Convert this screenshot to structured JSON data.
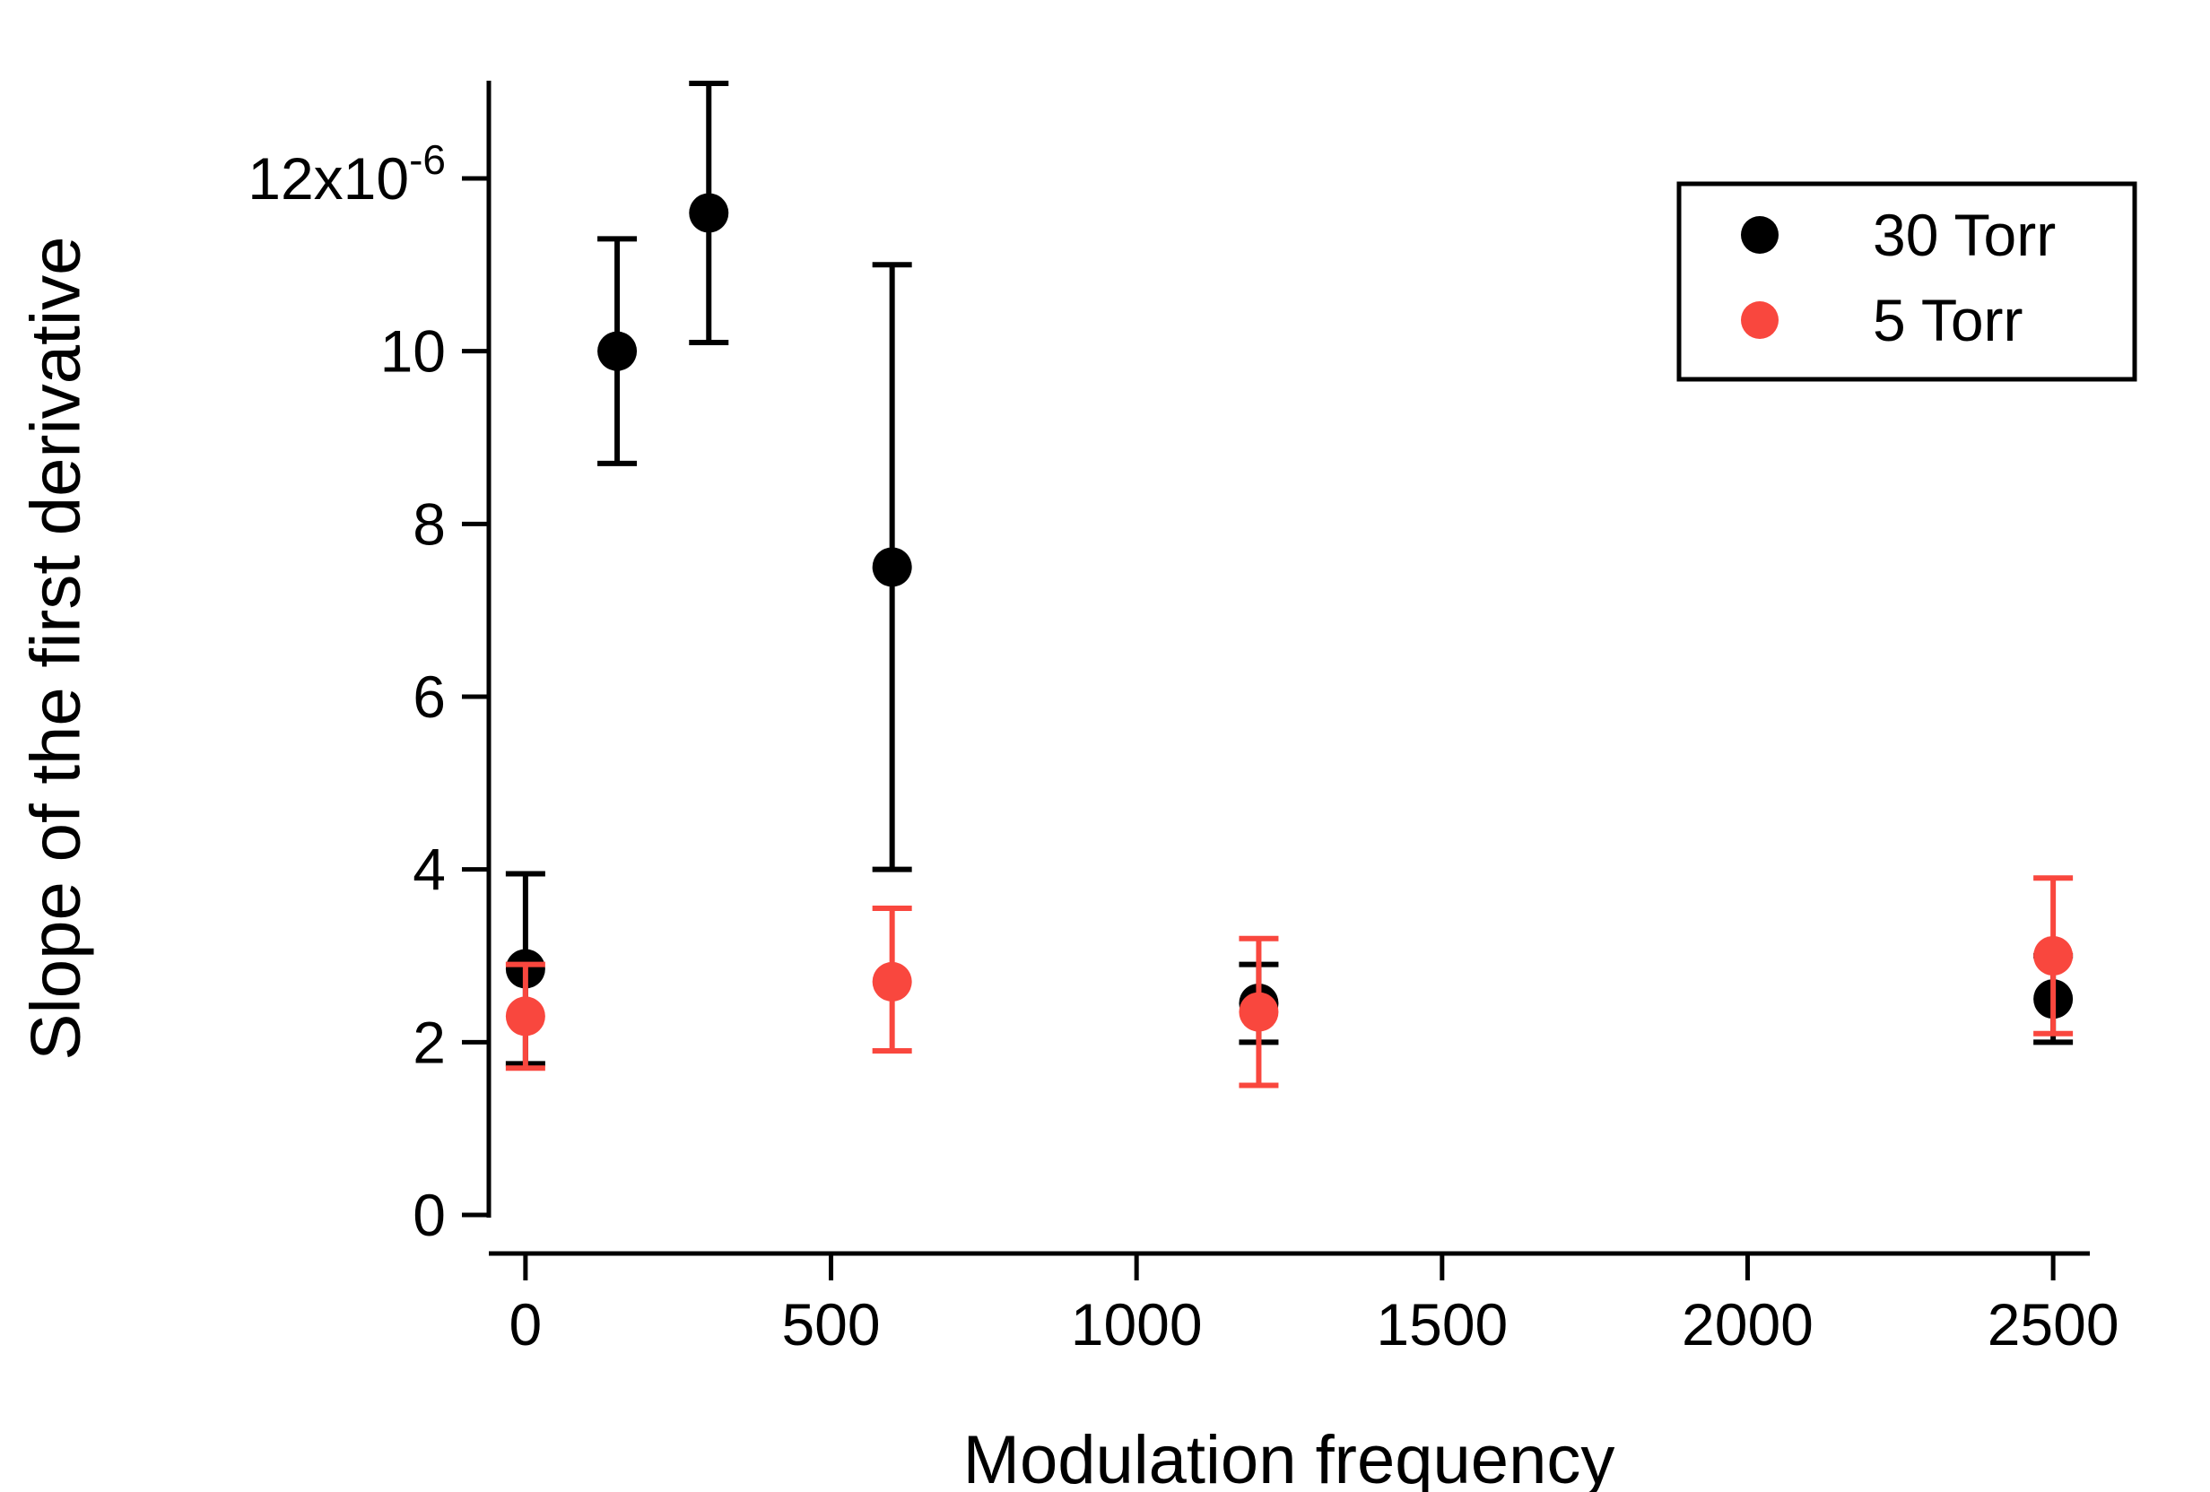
{
  "chart_data": {
    "type": "scatter",
    "title": "",
    "xlabel": "Modulation frequency",
    "ylabel": "Slope of the first derivative",
    "xlim": [
      -60,
      2560
    ],
    "ylim": [
      0,
      13.1
    ],
    "xticks": [
      0,
      500,
      1000,
      1500,
      2000,
      2500
    ],
    "yticks": [
      0,
      2,
      4,
      6,
      8,
      10,
      12
    ],
    "y_scale_label": {
      "applies_to_tick": 12,
      "base": "12x10",
      "exp": "-6"
    },
    "grid": false,
    "legend_position": "top-right",
    "series": [
      {
        "name": "30 Torr",
        "color": "#000000",
        "points": [
          {
            "x": 0,
            "y": 2.85,
            "err_plus": 1.1,
            "err_minus": 1.1
          },
          {
            "x": 150,
            "y": 10.0,
            "err_plus": 1.3,
            "err_minus": 1.3
          },
          {
            "x": 300,
            "y": 11.6,
            "err_plus": 1.5,
            "err_minus": 1.5
          },
          {
            "x": 600,
            "y": 7.5,
            "err_plus": 3.5,
            "err_minus": 3.5
          },
          {
            "x": 1200,
            "y": 2.45,
            "err_plus": 0.45,
            "err_minus": 0.45
          },
          {
            "x": 2500,
            "y": 2.5,
            "err_plus": 0.5,
            "err_minus": 0.5
          }
        ]
      },
      {
        "name": "5 Torr",
        "color": "#F9473E",
        "points": [
          {
            "x": 0,
            "y": 2.3,
            "err_plus": 0.6,
            "err_minus": 0.6
          },
          {
            "x": 600,
            "y": 2.7,
            "err_plus": 0.85,
            "err_minus": 0.8
          },
          {
            "x": 1200,
            "y": 2.35,
            "err_plus": 0.85,
            "err_minus": 0.85
          },
          {
            "x": 2500,
            "y": 3.0,
            "err_plus": 0.9,
            "err_minus": 0.9
          }
        ]
      }
    ],
    "legend": [
      "30 Torr",
      "5 Torr"
    ]
  }
}
